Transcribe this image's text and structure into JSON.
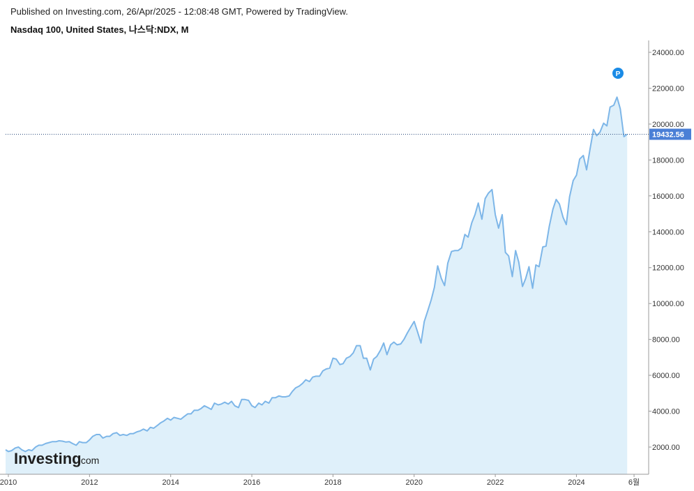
{
  "header": {
    "published": "Published on Investing.com, 26/Apr/2025 - 12:08:48 GMT, Powered by TradingView.",
    "title": "Nasdaq 100, United States, 나스닥:NDX, M"
  },
  "watermark": {
    "brand": "Investing",
    "suffix": ".com"
  },
  "marker": {
    "label": "P"
  },
  "colors": {
    "line": "#7db6e8",
    "fill": "#dff0fa",
    "price_tag": "#4a7fd6",
    "axis": "#333333"
  },
  "chart_data": {
    "type": "area",
    "title": "Nasdaq 100, United States, 나스닥:NDX, M",
    "xlabel": "",
    "ylabel": "",
    "xlim": [
      2010.0,
      2025.33
    ],
    "ylim": [
      0,
      24000
    ],
    "y_ticks": [
      "2000.00",
      "4000.00",
      "6000.00",
      "8000.00",
      "10000.00",
      "12000.00",
      "14000.00",
      "16000.00",
      "18000.00",
      "20000.00",
      "22000.00",
      "24000.00"
    ],
    "y_tick_values": [
      2000,
      4000,
      6000,
      8000,
      10000,
      12000,
      14000,
      16000,
      18000,
      20000,
      22000,
      24000
    ],
    "x_ticks": [
      "2010",
      "2012",
      "2014",
      "2016",
      "2018",
      "2020",
      "2022",
      "2024",
      "6월"
    ],
    "x_tick_values": [
      2010,
      2012,
      2014,
      2016,
      2018,
      2020,
      2022,
      2024,
      2025.42
    ],
    "last_price": 19432.56,
    "last_price_label": "19432.56",
    "series": [
      {
        "values": [
          [
            2009.92,
            1850
          ],
          [
            2010.0,
            1750
          ],
          [
            2010.08,
            1800
          ],
          [
            2010.17,
            1950
          ],
          [
            2010.25,
            2000
          ],
          [
            2010.33,
            1850
          ],
          [
            2010.42,
            1750
          ],
          [
            2010.5,
            1850
          ],
          [
            2010.58,
            1800
          ],
          [
            2010.67,
            2000
          ],
          [
            2010.75,
            2100
          ],
          [
            2010.83,
            2100
          ],
          [
            2010.92,
            2200
          ],
          [
            2011.0,
            2250
          ],
          [
            2011.08,
            2300
          ],
          [
            2011.17,
            2300
          ],
          [
            2011.25,
            2350
          ],
          [
            2011.33,
            2330
          ],
          [
            2011.42,
            2280
          ],
          [
            2011.5,
            2300
          ],
          [
            2011.58,
            2200
          ],
          [
            2011.67,
            2100
          ],
          [
            2011.75,
            2300
          ],
          [
            2011.83,
            2250
          ],
          [
            2011.92,
            2250
          ],
          [
            2012.0,
            2400
          ],
          [
            2012.08,
            2600
          ],
          [
            2012.17,
            2700
          ],
          [
            2012.25,
            2700
          ],
          [
            2012.33,
            2500
          ],
          [
            2012.42,
            2600
          ],
          [
            2012.5,
            2600
          ],
          [
            2012.58,
            2750
          ],
          [
            2012.67,
            2800
          ],
          [
            2012.75,
            2650
          ],
          [
            2012.83,
            2700
          ],
          [
            2012.92,
            2650
          ],
          [
            2013.0,
            2750
          ],
          [
            2013.08,
            2750
          ],
          [
            2013.17,
            2850
          ],
          [
            2013.25,
            2900
          ],
          [
            2013.33,
            3000
          ],
          [
            2013.42,
            2900
          ],
          [
            2013.5,
            3100
          ],
          [
            2013.58,
            3050
          ],
          [
            2013.67,
            3200
          ],
          [
            2013.75,
            3350
          ],
          [
            2013.83,
            3450
          ],
          [
            2013.92,
            3600
          ],
          [
            2014.0,
            3500
          ],
          [
            2014.08,
            3650
          ],
          [
            2014.17,
            3600
          ],
          [
            2014.25,
            3550
          ],
          [
            2014.33,
            3700
          ],
          [
            2014.42,
            3850
          ],
          [
            2014.5,
            3850
          ],
          [
            2014.58,
            4050
          ],
          [
            2014.67,
            4050
          ],
          [
            2014.75,
            4150
          ],
          [
            2014.83,
            4300
          ],
          [
            2014.92,
            4200
          ],
          [
            2015.0,
            4100
          ],
          [
            2015.08,
            4450
          ],
          [
            2015.17,
            4350
          ],
          [
            2015.25,
            4400
          ],
          [
            2015.33,
            4500
          ],
          [
            2015.42,
            4400
          ],
          [
            2015.5,
            4550
          ],
          [
            2015.58,
            4300
          ],
          [
            2015.67,
            4200
          ],
          [
            2015.75,
            4650
          ],
          [
            2015.83,
            4650
          ],
          [
            2015.92,
            4600
          ],
          [
            2016.0,
            4300
          ],
          [
            2016.08,
            4200
          ],
          [
            2016.17,
            4450
          ],
          [
            2016.25,
            4350
          ],
          [
            2016.33,
            4550
          ],
          [
            2016.42,
            4450
          ],
          [
            2016.5,
            4750
          ],
          [
            2016.58,
            4750
          ],
          [
            2016.67,
            4850
          ],
          [
            2016.75,
            4800
          ],
          [
            2016.83,
            4800
          ],
          [
            2016.92,
            4850
          ],
          [
            2017.0,
            5100
          ],
          [
            2017.08,
            5300
          ],
          [
            2017.17,
            5400
          ],
          [
            2017.25,
            5550
          ],
          [
            2017.33,
            5750
          ],
          [
            2017.42,
            5650
          ],
          [
            2017.5,
            5900
          ],
          [
            2017.58,
            5950
          ],
          [
            2017.67,
            5950
          ],
          [
            2017.75,
            6250
          ],
          [
            2017.83,
            6350
          ],
          [
            2017.92,
            6400
          ],
          [
            2018.0,
            6950
          ],
          [
            2018.08,
            6900
          ],
          [
            2018.17,
            6600
          ],
          [
            2018.25,
            6650
          ],
          [
            2018.33,
            6950
          ],
          [
            2018.42,
            7050
          ],
          [
            2018.5,
            7250
          ],
          [
            2018.58,
            7650
          ],
          [
            2018.67,
            7650
          ],
          [
            2018.75,
            6950
          ],
          [
            2018.83,
            6950
          ],
          [
            2018.92,
            6300
          ],
          [
            2019.0,
            6900
          ],
          [
            2019.08,
            7050
          ],
          [
            2019.17,
            7400
          ],
          [
            2019.25,
            7800
          ],
          [
            2019.33,
            7150
          ],
          [
            2019.42,
            7700
          ],
          [
            2019.5,
            7850
          ],
          [
            2019.58,
            7700
          ],
          [
            2019.67,
            7750
          ],
          [
            2019.75,
            8000
          ],
          [
            2019.83,
            8350
          ],
          [
            2019.92,
            8700
          ],
          [
            2020.0,
            9000
          ],
          [
            2020.08,
            8450
          ],
          [
            2020.17,
            7800
          ],
          [
            2020.25,
            9000
          ],
          [
            2020.33,
            9550
          ],
          [
            2020.42,
            10200
          ],
          [
            2020.5,
            10900
          ],
          [
            2020.58,
            12100
          ],
          [
            2020.67,
            11400
          ],
          [
            2020.75,
            11000
          ],
          [
            2020.83,
            12250
          ],
          [
            2020.92,
            12900
          ],
          [
            2021.0,
            12950
          ],
          [
            2021.08,
            12950
          ],
          [
            2021.17,
            13100
          ],
          [
            2021.25,
            13850
          ],
          [
            2021.33,
            13700
          ],
          [
            2021.42,
            14500
          ],
          [
            2021.5,
            14950
          ],
          [
            2021.58,
            15600
          ],
          [
            2021.67,
            14700
          ],
          [
            2021.75,
            15850
          ],
          [
            2021.83,
            16150
          ],
          [
            2021.92,
            16350
          ],
          [
            2022.0,
            14950
          ],
          [
            2022.08,
            14200
          ],
          [
            2022.17,
            14950
          ],
          [
            2022.25,
            12850
          ],
          [
            2022.33,
            12650
          ],
          [
            2022.42,
            11500
          ],
          [
            2022.5,
            12950
          ],
          [
            2022.58,
            12300
          ],
          [
            2022.67,
            10950
          ],
          [
            2022.75,
            11400
          ],
          [
            2022.83,
            12050
          ],
          [
            2022.92,
            10850
          ],
          [
            2023.0,
            12150
          ],
          [
            2023.08,
            12050
          ],
          [
            2023.17,
            13150
          ],
          [
            2023.25,
            13200
          ],
          [
            2023.33,
            14300
          ],
          [
            2023.42,
            15250
          ],
          [
            2023.5,
            15800
          ],
          [
            2023.58,
            15550
          ],
          [
            2023.67,
            14800
          ],
          [
            2023.75,
            14400
          ],
          [
            2023.83,
            15950
          ],
          [
            2023.92,
            16850
          ],
          [
            2024.0,
            17150
          ],
          [
            2024.08,
            18050
          ],
          [
            2024.17,
            18250
          ],
          [
            2024.25,
            17450
          ],
          [
            2024.33,
            18550
          ],
          [
            2024.42,
            19700
          ],
          [
            2024.5,
            19350
          ],
          [
            2024.58,
            19550
          ],
          [
            2024.67,
            20050
          ],
          [
            2024.75,
            19900
          ],
          [
            2024.83,
            20950
          ],
          [
            2024.92,
            21050
          ],
          [
            2025.0,
            21500
          ],
          [
            2025.08,
            20850
          ],
          [
            2025.17,
            19300
          ],
          [
            2025.25,
            19432.56
          ]
        ]
      }
    ]
  }
}
